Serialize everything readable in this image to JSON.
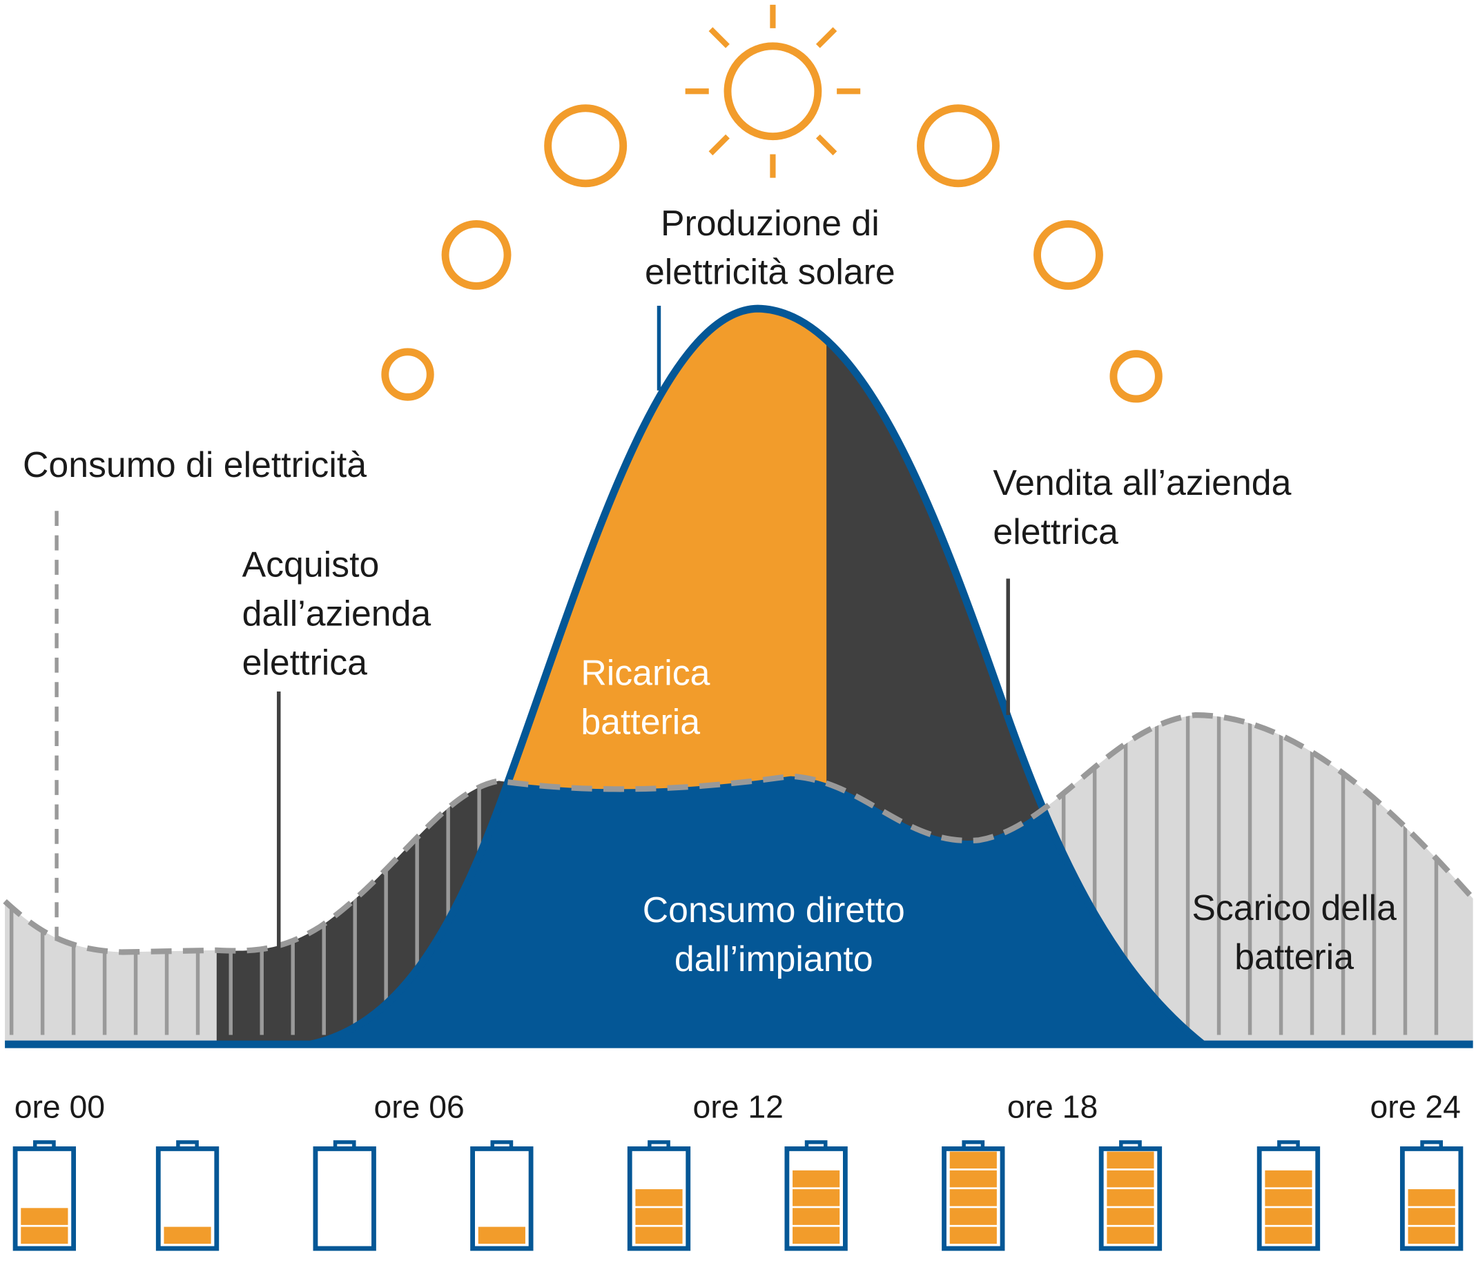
{
  "labels": {
    "solar_production": [
      "Produzione di",
      "elettricità solare"
    ],
    "consumption": [
      "Consumo di elettricità"
    ],
    "purchase": [
      "Acquisto",
      "dall’azienda",
      "elettrica"
    ],
    "sale": [
      "Vendita all’azienda",
      "elettrica"
    ],
    "battery_charge": [
      "Ricarica",
      "batteria"
    ],
    "direct_consumption": [
      "Consumo diretto",
      "dall’impianto"
    ],
    "battery_discharge": [
      "Scarico della",
      "batteria"
    ]
  },
  "hours": [
    "ore 00",
    "ore 06",
    "ore 12",
    "ore 18",
    "ore 24"
  ],
  "batteries": [
    2,
    1,
    0,
    1,
    3,
    4,
    5,
    5,
    4,
    3
  ]
}
